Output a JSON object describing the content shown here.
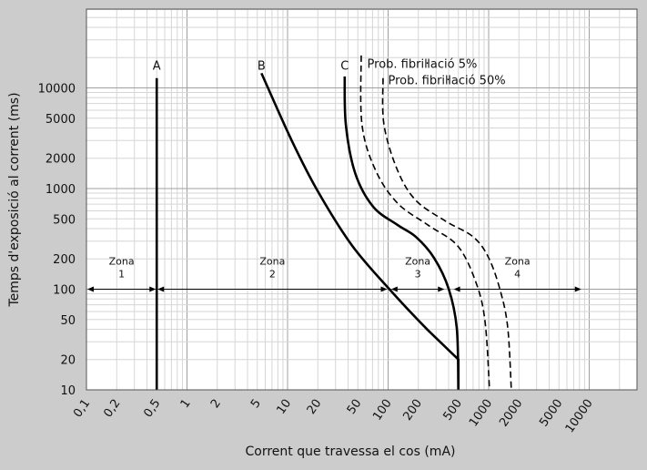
{
  "chart_data": {
    "type": "line",
    "xlabel": "Corrent que travessa el cos (mA)",
    "ylabel": "Temps d'exposició al corrent (ms)",
    "x_scale": "log",
    "y_scale": "log",
    "xlim": [
      0.1,
      30000
    ],
    "ylim": [
      10,
      60000
    ],
    "grid": true,
    "x_ticks": [
      0.1,
      0.2,
      0.5,
      1,
      2,
      5,
      10,
      20,
      50,
      100,
      200,
      500,
      1000,
      2000,
      5000,
      10000
    ],
    "x_tick_labels": [
      "0,1",
      "0,2",
      "0,5",
      "1",
      "2",
      "5",
      "10",
      "20",
      "50",
      "100",
      "200",
      "500",
      "1000",
      "2000",
      "5000",
      "10000"
    ],
    "y_ticks": [
      10,
      20,
      50,
      100,
      200,
      500,
      1000,
      2000,
      5000,
      10000
    ],
    "y_tick_labels": [
      "10",
      "20",
      "50",
      "100",
      "200",
      "500",
      "1000",
      "2000",
      "5000",
      "10000"
    ],
    "series": [
      {
        "name": "A",
        "style": "solid",
        "label_at": [
          0.5,
          14000
        ],
        "points": [
          [
            0.5,
            12500
          ],
          [
            0.5,
            10
          ]
        ]
      },
      {
        "name": "B",
        "style": "solid",
        "label_at": [
          5.5,
          14000
        ],
        "points": [
          [
            5.5,
            14000
          ],
          [
            11,
            3000
          ],
          [
            20,
            940
          ],
          [
            44,
            270
          ],
          [
            108,
            95
          ],
          [
            250,
            39
          ],
          [
            500,
            20
          ],
          [
            500,
            10
          ]
        ]
      },
      {
        "name": "C",
        "style": "solid",
        "label_at": [
          37,
          14000
        ],
        "points": [
          [
            37,
            13000
          ],
          [
            38,
            4300
          ],
          [
            47,
            1425
          ],
          [
            71,
            660
          ],
          [
            124,
            435
          ],
          [
            189,
            331
          ],
          [
            286,
            205
          ],
          [
            400,
            101
          ],
          [
            482,
            41
          ],
          [
            500,
            10
          ]
        ]
      },
      {
        "name": "Prob. fibriŀlació 5%",
        "style": "dashed",
        "label_at": [
          62,
          14500
        ],
        "points": [
          [
            54,
            21000
          ],
          [
            55,
            4300
          ],
          [
            75,
            1520
          ],
          [
            124,
            716
          ],
          [
            248,
            435
          ],
          [
            492,
            269
          ],
          [
            747,
            117
          ],
          [
            920,
            48
          ],
          [
            1020,
            10
          ]
        ]
      },
      {
        "name": "Prob. fibriŀlació 50%",
        "style": "dashed",
        "label_at": [
          100,
          10000
        ],
        "points": [
          [
            89,
            12500
          ],
          [
            91,
            4300
          ],
          [
            124,
            1520
          ],
          [
            189,
            762
          ],
          [
            376,
            472
          ],
          [
            702,
            331
          ],
          [
            1000,
            205
          ],
          [
            1312,
            95
          ],
          [
            1550,
            41
          ],
          [
            1680,
            10
          ]
        ]
      }
    ],
    "zones": [
      {
        "label": "Zona",
        "number": "1",
        "from": 0.1,
        "to": 0.5,
        "at_ms": 100
      },
      {
        "label": "Zona",
        "number": "2",
        "from": 0.5,
        "to": 100,
        "at_ms": 100
      },
      {
        "label": "Zona",
        "number": "3",
        "from": 105,
        "to": 370,
        "at_ms": 100
      },
      {
        "label": "Zona",
        "number": "4",
        "from": 440,
        "to": 8500,
        "at_ms": 100
      }
    ],
    "colors": {
      "background": "#cccccc",
      "plot": "#ffffff",
      "grid_minor": "#d6d6d6",
      "grid_major": "#a0a0a0",
      "line": "#000000"
    }
  }
}
